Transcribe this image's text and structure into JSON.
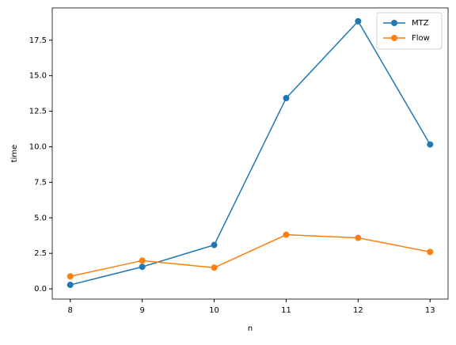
{
  "chart_data": {
    "type": "line",
    "x": [
      8,
      9,
      10,
      11,
      12,
      13
    ],
    "series": [
      {
        "name": "MTZ",
        "color": "#1f77b4",
        "values": [
          0.28,
          1.55,
          3.09,
          13.42,
          18.83,
          10.16
        ]
      },
      {
        "name": "Flow",
        "color": "#ff7f0e",
        "values": [
          0.88,
          1.99,
          1.49,
          3.81,
          3.59,
          2.6
        ]
      }
    ],
    "xlabel": "n",
    "ylabel": "time",
    "xlim": [
      7.75,
      13.25
    ],
    "xticks": [
      8,
      9,
      10,
      11,
      12,
      13
    ],
    "ylim": [
      -0.72,
      19.77
    ],
    "yticks": [
      {
        "value": 0,
        "label": "0.0"
      },
      {
        "value": 2.5,
        "label": "2.5"
      },
      {
        "value": 5,
        "label": "5.0"
      },
      {
        "value": 7.5,
        "label": "7.5"
      },
      {
        "value": 10,
        "label": "10.0"
      },
      {
        "value": 12.5,
        "label": "12.5"
      },
      {
        "value": 15,
        "label": "15.0"
      },
      {
        "value": 17.5,
        "label": "17.5"
      }
    ],
    "legend": "upper right",
    "grid": false
  }
}
